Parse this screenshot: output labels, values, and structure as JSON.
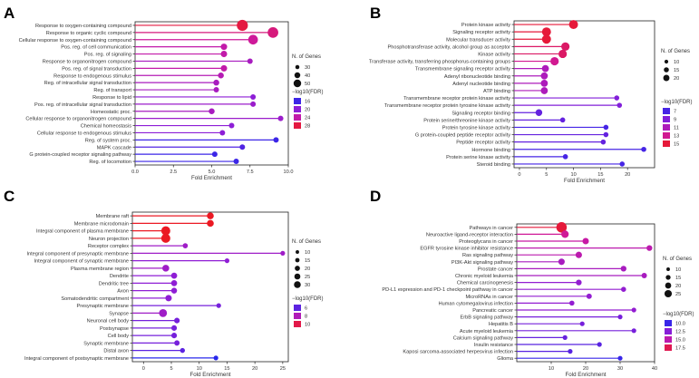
{
  "figure": {
    "x_axis_title": "Fold Enrichment",
    "size_legend_title": "N. of Genes",
    "color_legend_title": "−log10(FDR)"
  },
  "chart_data": [
    {
      "type": "lollipop",
      "panel": "A",
      "xlabel": "Fold Enrichment",
      "xlim": [
        0,
        10
      ],
      "xticks": [
        0,
        2.5,
        5,
        7.5,
        10
      ],
      "xtick_labels": [
        "0.0",
        "2.5",
        "5.0",
        "7.5",
        "10.0"
      ],
      "categories": [
        "Response to oxygen-containing compound",
        "Response to organic cyclic compound",
        "Cellular response to oxygen-containing compound",
        "Pos. reg. of cell communication",
        "Pos. reg. of signaling",
        "Response to organonitrogen compound",
        "Pos. reg. of signal transduction",
        "Response to endogenous stimulus",
        "Reg. of intracellular signal transduction",
        "Reg. of transport",
        "Response to lipid",
        "Pos. reg. of intracellular signal transduction",
        "Homeostatic proc.",
        "Cellular response to organonitrogen compound",
        "Chemical homeostasis",
        "Cellular response to endogenous stimulus",
        "Reg. of system proc.",
        "MAPK cascade",
        "G protein-coupled receptor signaling pathway",
        "Reg. of locomotion"
      ],
      "values": [
        7.0,
        9.0,
        7.7,
        5.8,
        5.8,
        7.5,
        5.8,
        5.6,
        5.3,
        5.3,
        7.7,
        7.7,
        5.0,
        9.5,
        6.3,
        5.7,
        9.2,
        7.0,
        5.2,
        6.6
      ],
      "n_genes": [
        56,
        52,
        48,
        34,
        34,
        30,
        34,
        32,
        32,
        30,
        24,
        26,
        32,
        24,
        28,
        24,
        12,
        16,
        28,
        16
      ],
      "log10_fdr": [
        28,
        26,
        25,
        24,
        24,
        22,
        24,
        23,
        22,
        22,
        20,
        21,
        22,
        21,
        20,
        20,
        16,
        17,
        16,
        16
      ],
      "size_legend": [
        30,
        40,
        50
      ],
      "color_legend": [
        16,
        20,
        24,
        28
      ],
      "color_range": [
        15,
        29
      ]
    },
    {
      "type": "lollipop",
      "panel": "B",
      "xlabel": "Fold Enrichment",
      "xlim": [
        -1,
        25
      ],
      "xticks": [
        0,
        5,
        10,
        15,
        20
      ],
      "xtick_labels": [
        "0",
        "5",
        "10",
        "15",
        "20"
      ],
      "categories": [
        "Protein kinase activity",
        "Signaling receptor activity",
        "Molecular transducer activity",
        "Phosphotransferase activity, alcohol group as acceptor",
        "Kinase activity",
        "Transferase activity, transferring phosphorus-containing groups",
        "Transmembrane signaling receptor activity",
        "Adenyl ribonucleotide binding",
        "Adenyl nucleotide binding",
        "ATP binding",
        "Transmembrane receptor protein kinase activity",
        "Transmembrane receptor protein tyrosine kinase activity",
        "Signaling receptor binding",
        "Protein serine/threonine kinase activity",
        "Protein tyrosine kinase activity",
        "G protein-coupled peptide receptor activity",
        "Peptide receptor activity",
        "Hormone binding",
        "Protein serine kinase activity",
        "Steroid binding"
      ],
      "values": [
        10.0,
        5.0,
        5.0,
        8.5,
        8.0,
        6.5,
        4.8,
        4.6,
        4.6,
        4.6,
        18.0,
        18.5,
        3.6,
        8.0,
        16.0,
        16.0,
        15.5,
        23.0,
        8.5,
        19.0
      ],
      "n_genes": [
        22,
        24,
        24,
        20,
        20,
        20,
        16,
        16,
        16,
        16,
        8,
        8,
        15,
        8,
        8,
        8,
        8,
        7,
        9,
        7
      ],
      "log10_fdr": [
        15,
        15,
        15,
        14,
        14,
        13,
        11,
        11,
        11,
        11,
        9,
        9,
        8,
        8,
        7,
        8,
        8,
        7,
        7,
        7
      ],
      "size_legend": [
        10,
        15,
        20
      ],
      "color_legend": [
        7,
        9,
        11,
        13,
        15
      ],
      "color_range": [
        6,
        15.5
      ]
    },
    {
      "type": "lollipop",
      "panel": "C",
      "xlabel": "Fold Enrichment",
      "xlim": [
        -2,
        26
      ],
      "xticks": [
        0,
        5,
        10,
        15,
        20,
        25
      ],
      "xtick_labels": [
        "0",
        "5",
        "10",
        "15",
        "20",
        "25"
      ],
      "categories": [
        "Membrane raft",
        "Membrane microdomain",
        "Integral component of plasma membrane",
        "Neuron projection",
        "Receptor complex",
        "Integral component of presynaptic membrane",
        "Integral component of synaptic membrane",
        "Plasma membrane region",
        "Dendrite",
        "Dendritic tree",
        "Axon",
        "Somatodendritic compartment",
        "Presynaptic membrane",
        "Synapse",
        "Neuronal cell body",
        "Postsynapse",
        "Cell body",
        "Synaptic membrane",
        "Distal axon",
        "Integral component of postsynaptic membrane"
      ],
      "values": [
        12.0,
        12.0,
        4.0,
        4.0,
        7.5,
        25.0,
        15.0,
        4.0,
        5.5,
        5.5,
        5.5,
        4.5,
        13.5,
        3.5,
        6.0,
        5.5,
        5.5,
        6.0,
        7.0,
        13.0
      ],
      "n_genes": [
        20,
        20,
        30,
        30,
        12,
        8,
        8,
        20,
        16,
        16,
        15,
        18,
        7,
        25,
        14,
        14,
        14,
        13,
        11,
        6
      ],
      "log10_fdr": [
        10.5,
        10.5,
        10.5,
        10.5,
        7.5,
        7.5,
        7,
        7.5,
        7,
        7,
        7,
        7,
        6.5,
        7.5,
        6.5,
        6.5,
        6.5,
        6.5,
        6,
        5
      ],
      "size_legend": [
        10,
        15,
        20,
        25,
        30
      ],
      "color_legend": [
        6,
        8,
        10
      ],
      "color_range": [
        5,
        10.5
      ]
    },
    {
      "type": "lollipop",
      "panel": "D",
      "xlabel": "Fold Enrichment",
      "xlim": [
        0,
        40
      ],
      "xticks": [
        10,
        20,
        30,
        40
      ],
      "xtick_labels": [
        "10",
        "20",
        "30",
        "40"
      ],
      "categories": [
        "Pathways in cancer",
        "Neuroactive ligand-receptor interaction",
        "Proteoglycans in cancer",
        "EGFR tyrosine kinase inhibitor resistance",
        "Ras signaling pathway",
        "PI3K-Akt signaling pathway",
        "Prostate cancer",
        "Chronic myeloid leukemia",
        "Chemical carcinogenesis",
        "PD-L1 expression and PD-1 checkpoint pathway in cancer",
        "MicroRNAs in cancer",
        "Human cytomegalovirus infection",
        "Pancreatic cancer",
        "ErbB signaling pathway",
        "Hepatitis B",
        "Acute myeloid leukemia",
        "Calcium signaling pathway",
        "Insulin resistance",
        "Kaposi sarcoma-associated herpesvirus infection",
        "Glioma"
      ],
      "values": [
        13.0,
        14.0,
        20.0,
        38.5,
        18.0,
        13.0,
        31.0,
        37.0,
        18.0,
        31.0,
        21.0,
        16.0,
        34.0,
        30.0,
        19.0,
        34.0,
        14.0,
        24.0,
        15.5,
        30.0
      ],
      "n_genes": [
        27,
        18,
        15,
        13,
        15,
        15,
        13,
        12,
        13,
        11,
        12,
        11,
        10,
        10,
        10,
        9,
        10,
        9,
        10,
        8
      ],
      "log10_fdr": [
        18,
        16,
        15.5,
        15,
        15,
        14,
        14,
        14,
        13,
        13,
        13,
        13,
        13,
        12,
        12,
        12,
        11.5,
        11,
        11,
        10
      ],
      "size_legend": [
        10,
        15,
        20,
        25
      ],
      "color_legend": [
        10.0,
        12.5,
        15.0,
        17.5
      ],
      "color_legend_labels": [
        "10.0",
        "12.5",
        "15.0",
        "17.5"
      ],
      "color_range": [
        9.5,
        18.5
      ]
    }
  ]
}
